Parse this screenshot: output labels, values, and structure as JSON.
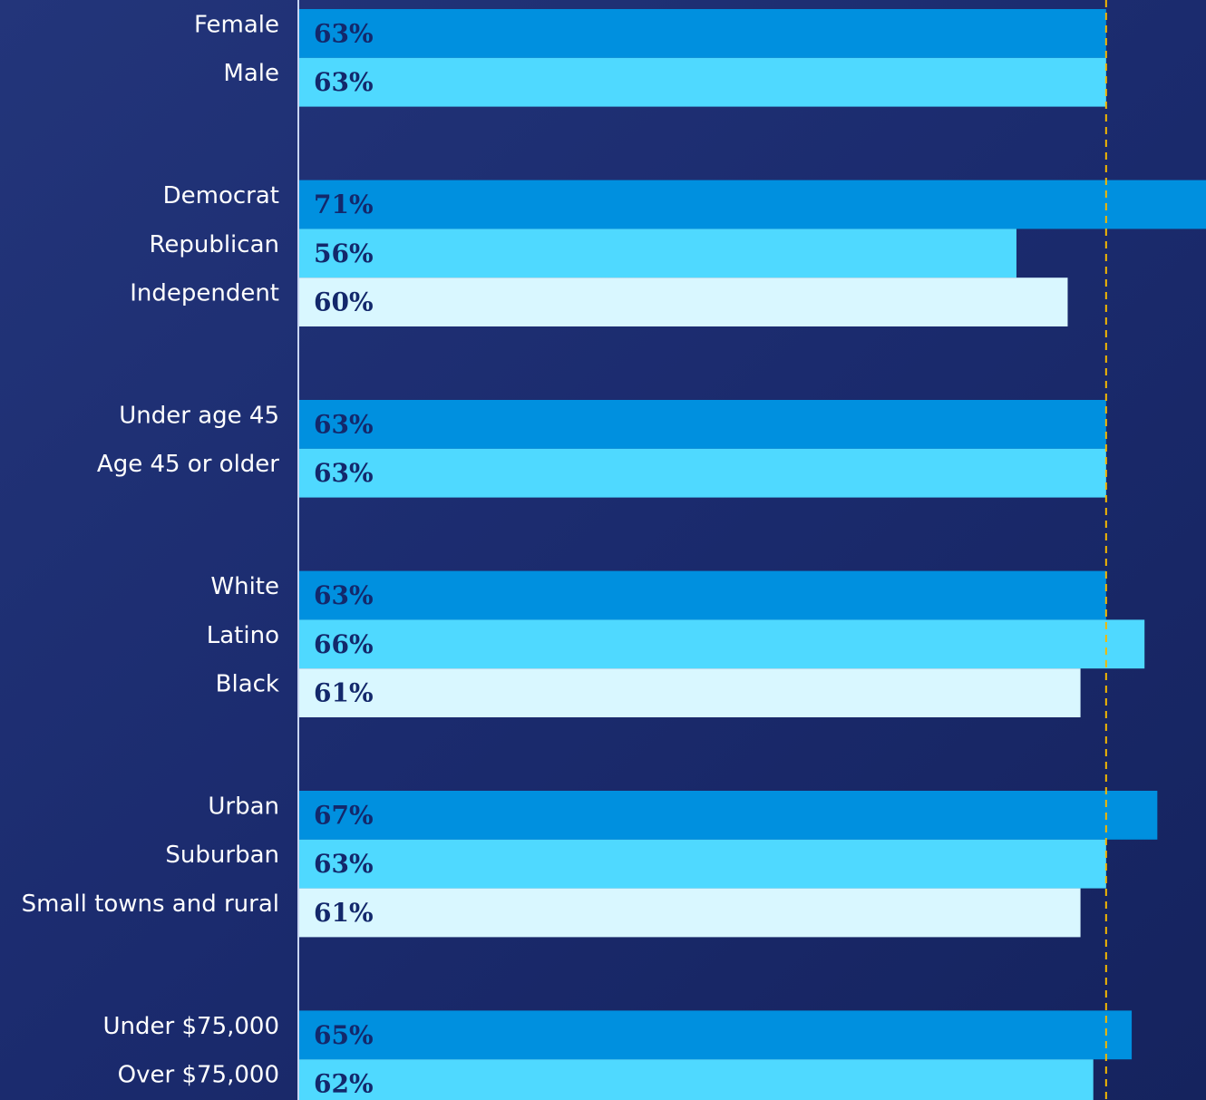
{
  "chart_data": {
    "type": "bar",
    "orientation": "horizontal",
    "groups": [
      {
        "categories": [
          "Female",
          "Male"
        ],
        "values": [
          63,
          63
        ],
        "value_labels": [
          "63%",
          "63%"
        ]
      },
      {
        "categories": [
          "Democrat",
          "Republican",
          "Independent"
        ],
        "values": [
          71,
          56,
          60
        ],
        "value_labels": [
          "71%",
          "56%",
          "60%"
        ]
      },
      {
        "categories": [
          "Under age 45",
          "Age 45 or older"
        ],
        "values": [
          63,
          63
        ],
        "value_labels": [
          "63%",
          "63%"
        ]
      },
      {
        "categories": [
          "White",
          "Latino",
          "Black"
        ],
        "values": [
          63,
          66,
          61
        ],
        "value_labels": [
          "63%",
          "66%",
          "61%"
        ]
      },
      {
        "categories": [
          "Urban",
          "Suburban",
          "Small towns and rural"
        ],
        "values": [
          67,
          63,
          61
        ],
        "value_labels": [
          "67%",
          "63%",
          "61%"
        ]
      },
      {
        "categories": [
          "Under $75,000",
          "Over $75,000"
        ],
        "values": [
          65,
          62
        ],
        "value_labels": [
          "65%",
          "62%"
        ]
      }
    ],
    "colors": [
      "#0090df",
      "#4fd9ff",
      "#d9f7ff"
    ],
    "reference_value": 63,
    "reference_color": "#f5b800",
    "xlim": [
      0,
      70.8
    ]
  }
}
